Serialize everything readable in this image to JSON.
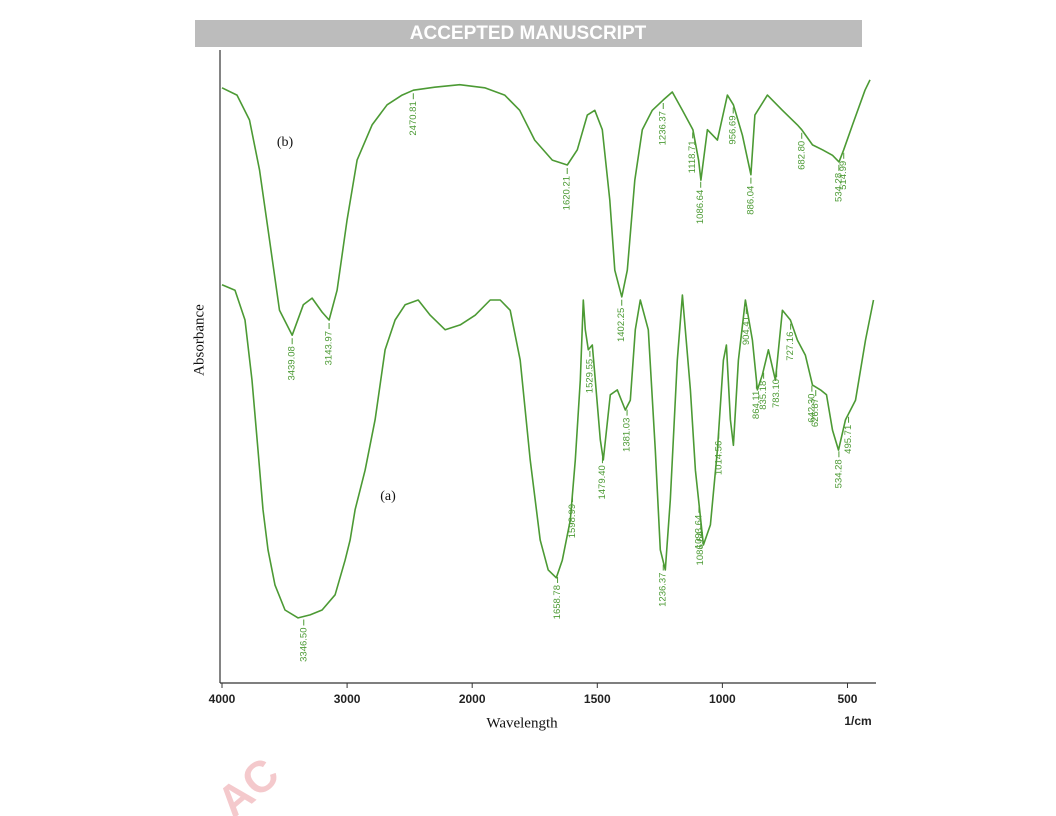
{
  "banner": "ACCEPTED MANUSCRIPT",
  "watermark": "AC",
  "chart_data": {
    "type": "line",
    "x_label": "Wavelength",
    "x_unit": "1/cm",
    "y_label": "Absorbance",
    "xlim": [
      4000,
      390
    ],
    "xticks": [
      4000,
      3000,
      2000,
      1500,
      1000,
      500
    ],
    "ylim": [
      0,
      100
    ],
    "series": [
      {
        "name": "(a)",
        "color": "#4c9a34",
        "x": [
          4000,
          3896,
          3816,
          3760,
          3712,
          3672,
          3632,
          3576,
          3496,
          3392,
          3296,
          3200,
          3096,
          3016,
          2976,
          2936,
          2856,
          2776,
          2696,
          2616,
          2536,
          2432,
          2336,
          2216,
          2096,
          1988,
          1928,
          1888,
          1848,
          1808,
          1768,
          1728,
          1696,
          1664,
          1640,
          1608,
          1588,
          1568,
          1556,
          1548,
          1536,
          1520,
          1508,
          1488,
          1476,
          1448,
          1420,
          1388,
          1368,
          1348,
          1328,
          1296,
          1268,
          1248,
          1228,
          1208,
          1180,
          1160,
          1128,
          1108,
          1076,
          1048,
          1020,
          996,
          984,
          968,
          956,
          936,
          908,
          880,
          860,
          840,
          816,
          788,
          760,
          728,
          700,
          668,
          640,
          608,
          584,
          560,
          536,
          508,
          468,
          428,
          396
        ],
        "values": [
          65.5,
          64.6,
          59.7,
          49.8,
          38.3,
          28.5,
          21.9,
          16.1,
          12.0,
          10.7,
          11.2,
          12.0,
          14.5,
          20.2,
          23.5,
          28.5,
          35.0,
          43.3,
          54.8,
          59.7,
          62.2,
          63.0,
          60.5,
          58.1,
          58.9,
          60.5,
          63.0,
          63.0,
          61.3,
          53.1,
          36.7,
          23.5,
          18.6,
          17.3,
          20.2,
          26.8,
          36.7,
          49.8,
          63.0,
          58.1,
          54.8,
          55.6,
          49.8,
          40.0,
          36.7,
          47.4,
          48.2,
          44.9,
          46.5,
          58.1,
          63.0,
          58.1,
          38.3,
          21.9,
          18.6,
          30.1,
          53.1,
          63.8,
          48.2,
          35.0,
          22.7,
          26.0,
          38.3,
          53.1,
          55.6,
          43.3,
          39.1,
          53.1,
          63.0,
          56.4,
          48.2,
          50.7,
          54.8,
          49.8,
          61.3,
          59.7,
          56.4,
          53.9,
          49.0,
          48.2,
          47.4,
          41.6,
          38.3,
          43.3,
          46.5,
          56.4,
          63.0
        ],
        "peaks": [
          {
            "value": 3346.5,
            "label": "3346.50"
          },
          1658.78,
          1598.99,
          1529.55,
          {
            "value": 1479.4,
            "label": "1479.40"
          },
          1381.03,
          1236.37,
          1093.64,
          1086.64,
          1014.56,
          904.41,
          864.11,
          835.18,
          {
            "value": 783.1,
            "label": "783.10"
          },
          727.16,
          {
            "value": 642.3,
            "label": "642.30"
          },
          626.87,
          534.28,
          495.71
        ]
      },
      {
        "name": "(b)",
        "color": "#4c9a34",
        "x": [
          4000,
          3880,
          3780,
          3700,
          3620,
          3540,
          3439,
          3350,
          3280,
          3200,
          3144,
          3080,
          3000,
          2920,
          2800,
          2680,
          2560,
          2470,
          2300,
          2100,
          1950,
          1870,
          1810,
          1750,
          1680,
          1620,
          1580,
          1540,
          1510,
          1480,
          1450,
          1430,
          1402,
          1380,
          1350,
          1320,
          1280,
          1236,
          1200,
          1160,
          1118,
          1095,
          1086,
          1060,
          1020,
          980,
          956,
          920,
          886,
          870,
          820,
          760,
          700,
          683,
          640,
          600,
          560,
          534,
          515,
          480,
          430,
          410
        ],
        "values": [
          97.9,
          96.7,
          92.6,
          84.4,
          72.9,
          61.3,
          57.2,
          62.2,
          63.3,
          61.0,
          59.7,
          64.6,
          76.2,
          86.0,
          91.8,
          95.1,
          96.7,
          97.5,
          98.0,
          98.4,
          97.9,
          96.7,
          94.2,
          89.3,
          86.0,
          85.2,
          87.7,
          93.4,
          94.2,
          91.0,
          79.4,
          67.9,
          63.5,
          67.9,
          82.7,
          91.0,
          94.2,
          95.9,
          97.2,
          94.2,
          91.0,
          86.0,
          82.7,
          91.0,
          89.3,
          96.7,
          95.1,
          90.1,
          83.6,
          93.4,
          96.7,
          94.2,
          91.8,
          91.0,
          88.5,
          87.7,
          86.8,
          85.7,
          87.7,
          91.8,
          97.5,
          99.2
        ],
        "peaks": [
          3439.08,
          3143.97,
          2470.81,
          1620.21,
          1402.25,
          1236.37,
          1118.71,
          1086.64,
          956.69,
          886.04,
          {
            "value": 682.8,
            "label": "682.80"
          },
          534.28,
          514.99
        ]
      }
    ]
  }
}
